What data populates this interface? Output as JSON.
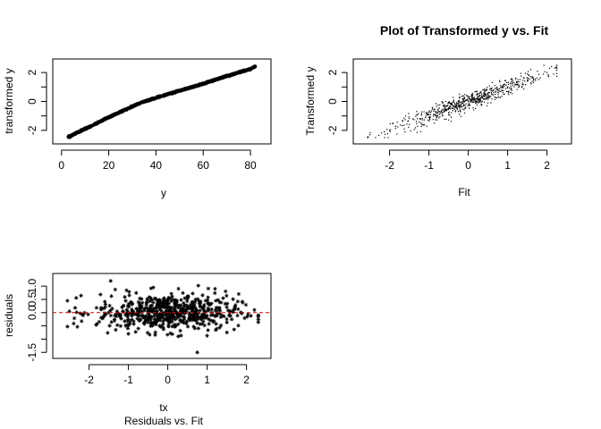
{
  "chart_data": [
    {
      "type": "scatter",
      "title": "",
      "xlabel": "y",
      "ylabel": "transformed y",
      "xlim": [
        0,
        85
      ],
      "ylim": [
        -2.7,
        2.7
      ],
      "xticks": [
        0,
        20,
        40,
        60,
        80
      ],
      "yticks": [
        -2,
        -1,
        0,
        1,
        2
      ],
      "ytick_labels": [
        "-2",
        "",
        "0",
        "",
        "2"
      ],
      "marker": "*",
      "series": [
        {
          "points_x": [
            3,
            5,
            6,
            8,
            10,
            12,
            15,
            18,
            20,
            22,
            25,
            28,
            30,
            32,
            35,
            38,
            40,
            45,
            50,
            55,
            60,
            65,
            70,
            75,
            80,
            82
          ],
          "points_y": [
            -2.45,
            -2.3,
            -2.2,
            -2.05,
            -1.9,
            -1.75,
            -1.5,
            -1.25,
            -1.1,
            -0.95,
            -0.72,
            -0.5,
            -0.35,
            -0.2,
            -0.02,
            0.15,
            0.25,
            0.5,
            0.75,
            0.98,
            1.22,
            1.5,
            1.75,
            2.0,
            2.25,
            2.42
          ]
        }
      ]
    },
    {
      "type": "scatter",
      "title": "Plot of Transformed y vs. Fit",
      "xlabel": "Fit",
      "ylabel": "Transformed y",
      "xlim": [
        -2.7,
        2.4
      ],
      "ylim": [
        -2.7,
        2.7
      ],
      "xticks": [
        -2,
        -1,
        0,
        1,
        2
      ],
      "yticks": [
        -2,
        -1,
        0,
        1,
        2
      ],
      "ytick_labels": [
        "-2",
        "",
        "0",
        "",
        "2"
      ],
      "marker": ".",
      "series": [
        {
          "points_x": [
            -2.5,
            -2.0,
            -1.5,
            -1.0,
            -0.5,
            0.0,
            0.5,
            1.0,
            1.5,
            2.0,
            2.2
          ],
          "points_y": [
            -2.3,
            -2.0,
            -1.6,
            -1.1,
            -0.5,
            0.0,
            0.5,
            1.0,
            1.5,
            2.0,
            2.3
          ]
        }
      ]
    },
    {
      "type": "scatter",
      "title": "",
      "xlabel": "tx",
      "subtitle_below": "Residuals vs. Fit",
      "ylabel": "residuals",
      "xlim": [
        -2.7,
        2.4
      ],
      "ylim": [
        -1.6,
        1.35
      ],
      "xticks": [
        -2,
        -1,
        0,
        1,
        2
      ],
      "yticks": [
        -1.5,
        -1.0,
        -0.5,
        0.0,
        0.5,
        1.0
      ],
      "ytick_labels": [
        "-1.5",
        "",
        "",
        "0.0",
        "0.5",
        "1.0"
      ],
      "marker": "*",
      "reference_line": {
        "y": 0,
        "color": "#dd0000",
        "style": "dashed"
      },
      "series": [
        {
          "points_x": [
            -1.45,
            0.75,
            -2.5,
            2.2,
            0.0,
            1.2,
            -1.0,
            0.5
          ],
          "points_y": [
            1.2,
            -1.5,
            0.05,
            0.1,
            0.2,
            0.9,
            -0.8,
            0.6
          ]
        }
      ]
    }
  ]
}
